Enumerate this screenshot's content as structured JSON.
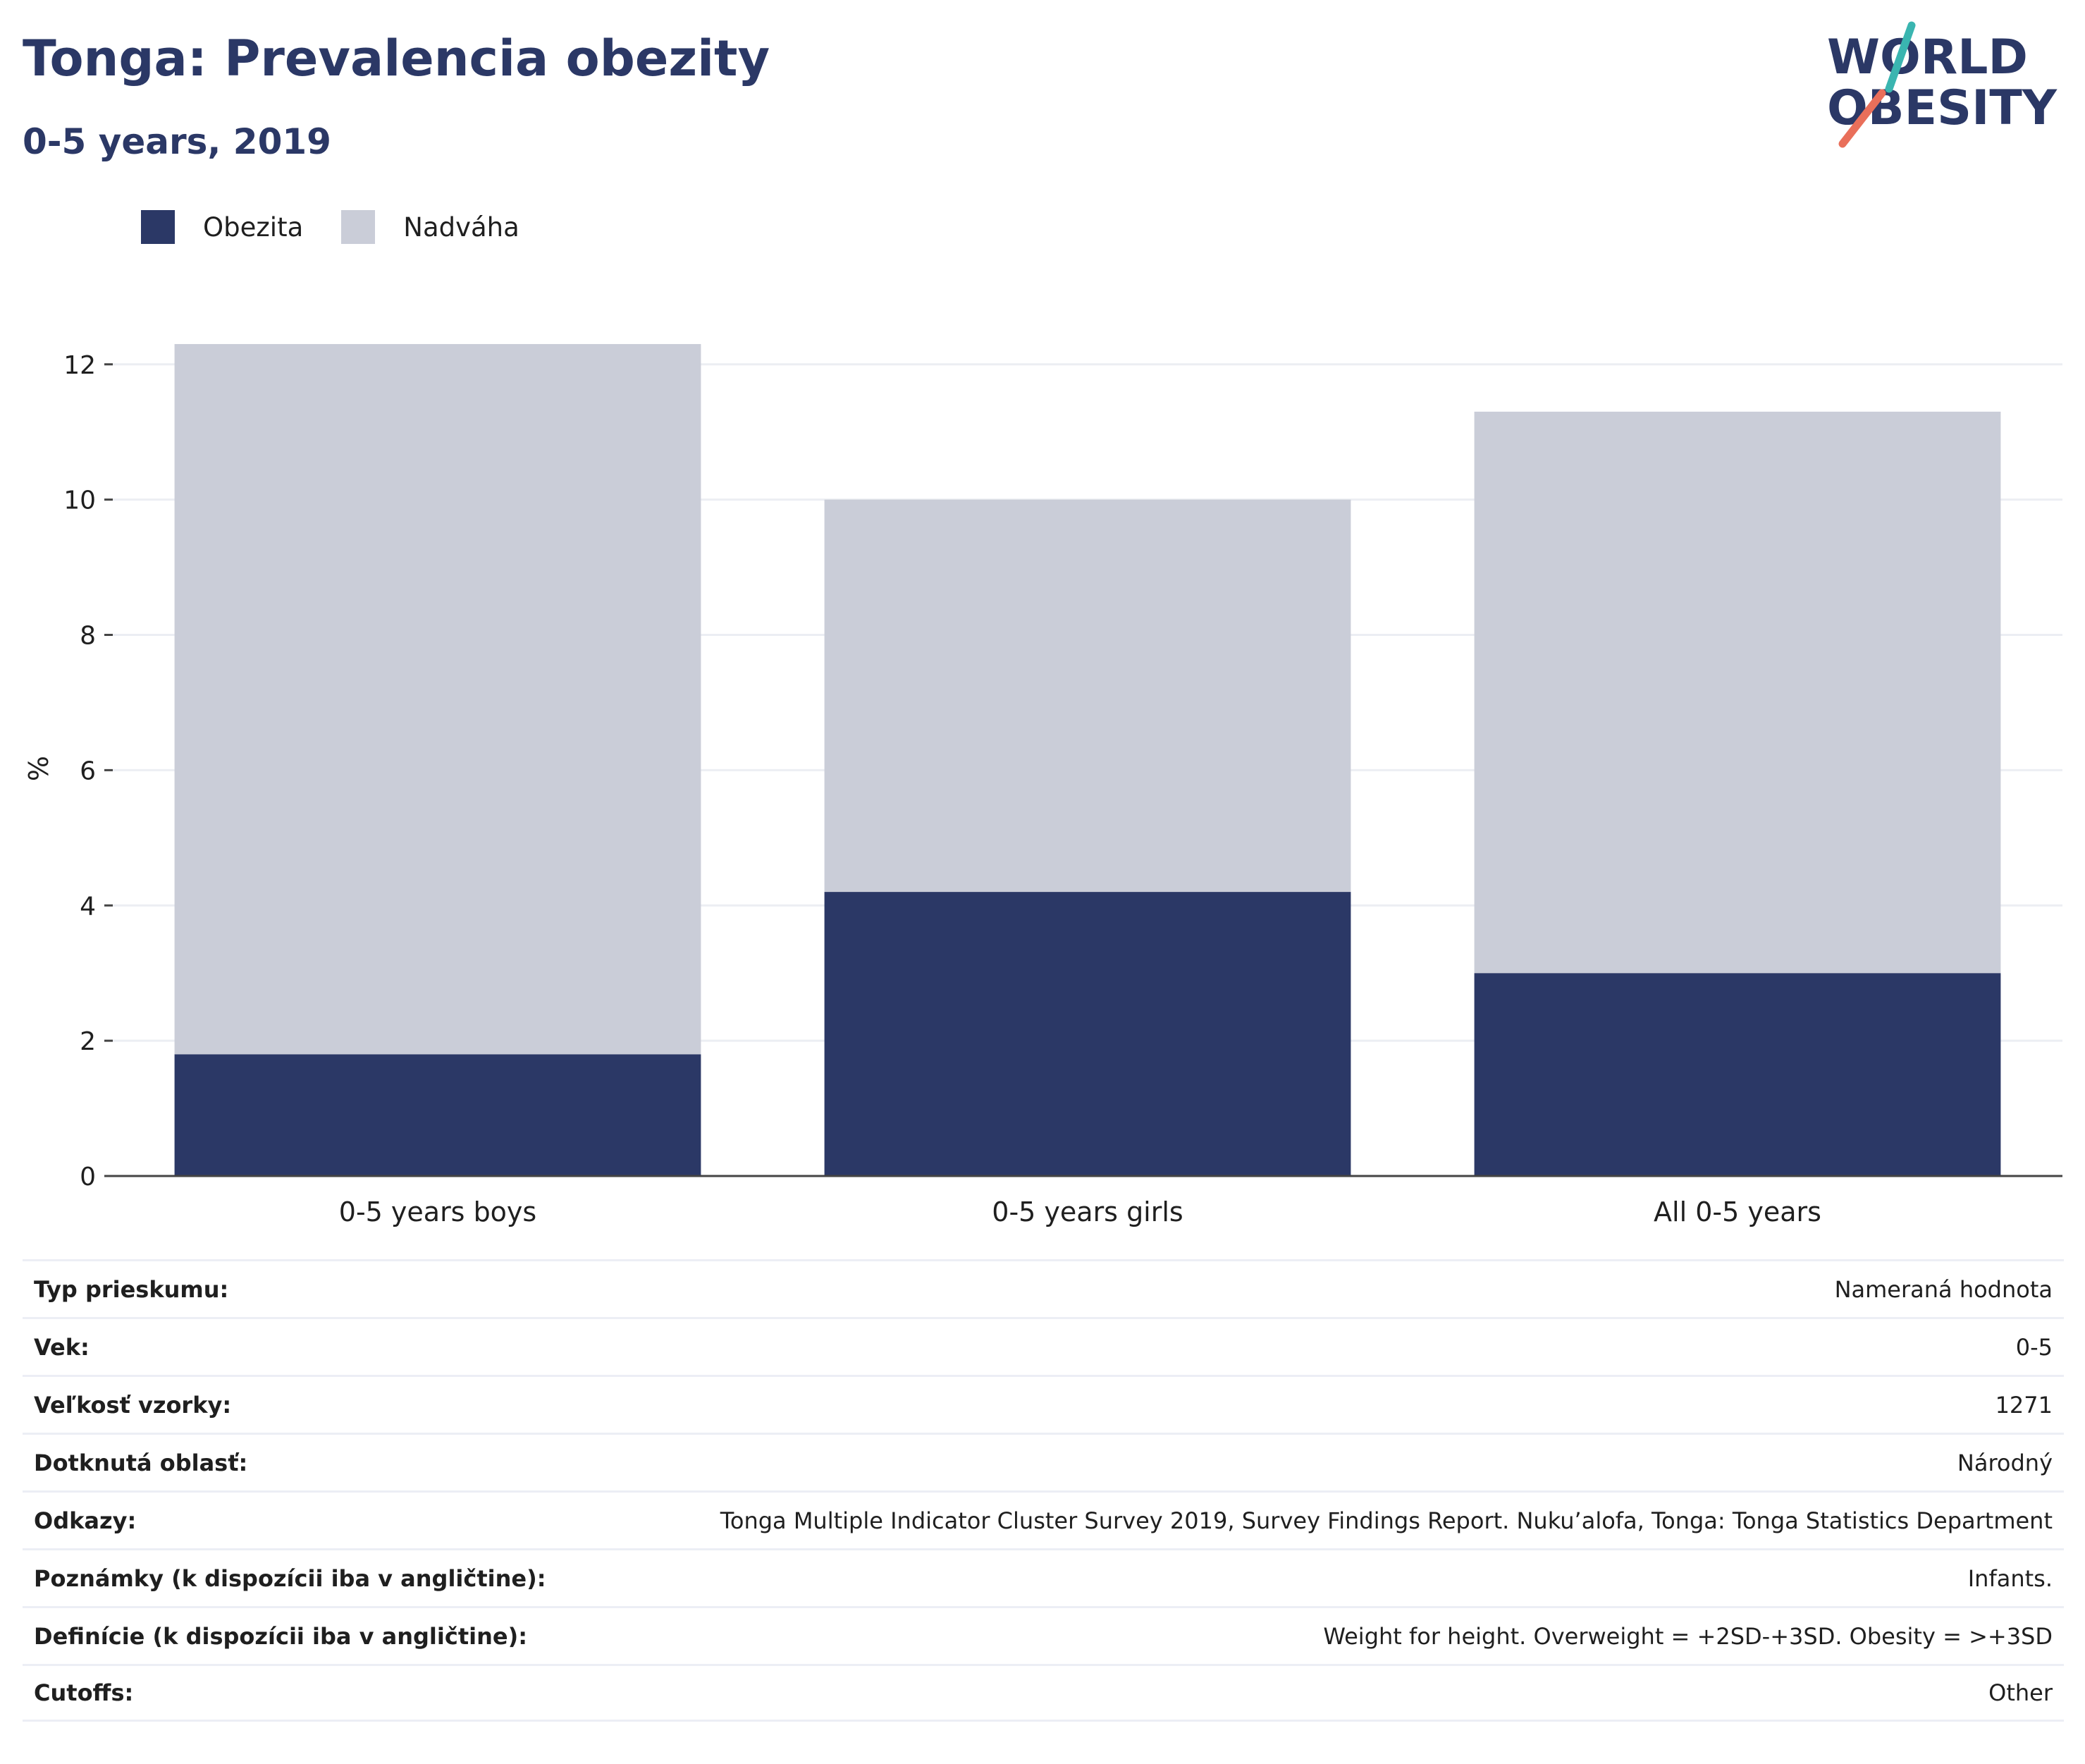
{
  "header": {
    "title": "Tonga: Prevalencia obezity",
    "subtitle": "0-5 years, 2019"
  },
  "logo": {
    "line1": "WORLD",
    "line2": "OBESITY",
    "icon": "world-obesity-logo"
  },
  "colors": {
    "obesity": "#2b3866",
    "overweight": "#cacdd8",
    "title": "#2b3866",
    "logo_teal": "#3ab5b0",
    "logo_coral": "#e96f5a"
  },
  "chart_data": {
    "type": "bar",
    "stacked": true,
    "categories": [
      "0-5 years boys",
      "0-5 years girls",
      "All 0-5 years"
    ],
    "series": [
      {
        "name": "Obezita",
        "values": [
          1.8,
          4.2,
          3.0
        ]
      },
      {
        "name": "Nadváha",
        "values": [
          10.5,
          5.8,
          8.3
        ]
      }
    ],
    "totals": [
      12.3,
      10.0,
      11.3
    ],
    "ylabel": "%",
    "ylim": [
      0,
      12.8
    ],
    "yticks": [
      0,
      2,
      4,
      6,
      8,
      10,
      12
    ],
    "grid": true,
    "legend_position": "top-left"
  },
  "info_rows": [
    {
      "key": "Typ prieskumu:",
      "value": "Nameraná hodnota"
    },
    {
      "key": "Vek:",
      "value": "0-5"
    },
    {
      "key": "Veľkosť vzorky:",
      "value": "1271"
    },
    {
      "key": "Dotknutá oblasť:",
      "value": "Národný"
    },
    {
      "key": "Odkazy:",
      "value": "Tonga Multiple Indicator Cluster Survey 2019, Survey Findings Report. Nuku’alofa, Tonga: Tonga Statistics Department"
    },
    {
      "key": "Poznámky (k dispozícii iba v angličtine):",
      "value": "Infants."
    },
    {
      "key": "Definície (k dispozícii iba v angličtine):",
      "value": "Weight for height. Overweight = +2SD-+3SD. Obesity = >+3SD"
    },
    {
      "key": "Cutoffs:",
      "value": "Other"
    }
  ]
}
